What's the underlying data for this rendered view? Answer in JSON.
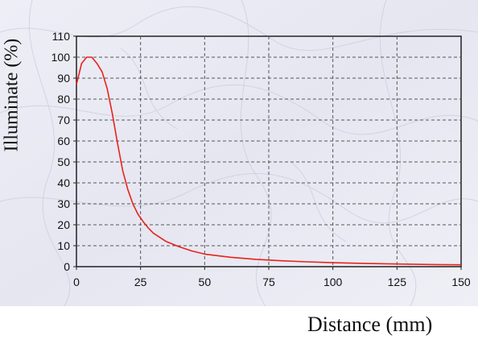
{
  "chart_data": {
    "type": "line",
    "xlabel": "Distance (mm)",
    "ylabel": "Illuminate (%)",
    "xlim": [
      0,
      150
    ],
    "ylim": [
      0,
      110
    ],
    "x_ticks": [
      "0",
      "25",
      "50",
      "75",
      "100",
      "125",
      "150"
    ],
    "y_ticks": [
      "0",
      "10",
      "20",
      "30",
      "40",
      "50",
      "60",
      "70",
      "80",
      "90",
      "100",
      "110"
    ],
    "grid": true,
    "series": [
      {
        "color": "#e8231c",
        "x": [
          0,
          2,
          4,
          6,
          8,
          10,
          12,
          14,
          16,
          18,
          20,
          22,
          24,
          26,
          28,
          30,
          35,
          40,
          45,
          50,
          60,
          70,
          80,
          90,
          100,
          110,
          120,
          130,
          140,
          150
        ],
        "y": [
          87,
          97,
          100,
          100,
          97,
          93,
          85,
          73,
          59,
          46,
          37,
          30,
          25,
          21.5,
          18.5,
          16,
          12,
          9.5,
          7.5,
          6,
          4.5,
          3.5,
          2.8,
          2.3,
          1.9,
          1.6,
          1.4,
          1.2,
          1.0,
          0.9
        ]
      }
    ]
  }
}
